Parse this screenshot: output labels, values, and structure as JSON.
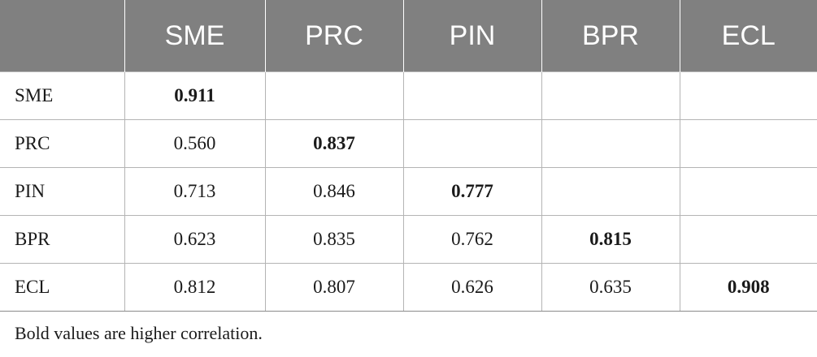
{
  "table": {
    "header": [
      "",
      "SME",
      "PRC",
      "PIN",
      "BPR",
      "ECL"
    ],
    "rows": [
      {
        "label": "SME",
        "cells": [
          "0.911",
          "",
          "",
          "",
          ""
        ],
        "bold_index": 0
      },
      {
        "label": "PRC",
        "cells": [
          "0.560",
          "0.837",
          "",
          "",
          ""
        ],
        "bold_index": 1
      },
      {
        "label": "PIN",
        "cells": [
          "0.713",
          "0.846",
          "0.777",
          "",
          ""
        ],
        "bold_index": 2
      },
      {
        "label": "BPR",
        "cells": [
          "0.623",
          "0.835",
          "0.762",
          "0.815",
          ""
        ],
        "bold_index": 3
      },
      {
        "label": "ECL",
        "cells": [
          "0.812",
          "0.807",
          "0.626",
          "0.635",
          "0.908"
        ],
        "bold_index": 4
      }
    ]
  },
  "footnote": "Bold values are higher correlation.",
  "colors": {
    "header_bg": "#808080",
    "header_text": "#ffffff",
    "grid_line": "#b4b4b4",
    "text": "#1a1a1a"
  }
}
